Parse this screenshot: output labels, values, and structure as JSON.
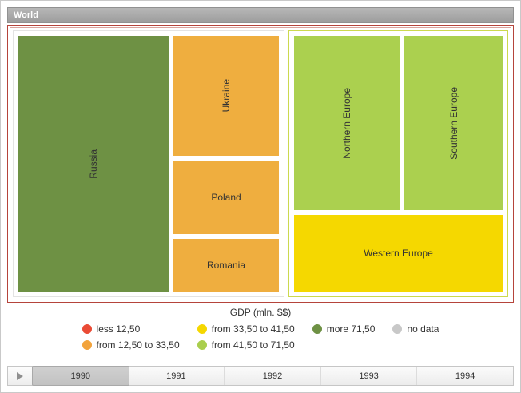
{
  "header": {
    "title": "World"
  },
  "treemap": {
    "cells": {
      "russia": {
        "label": "Russia",
        "color": "#6e9144"
      },
      "ukraine": {
        "label": "Ukraine",
        "color": "#efae3f"
      },
      "poland": {
        "label": "Poland",
        "color": "#efae3f"
      },
      "romania": {
        "label": "Romania",
        "color": "#efae3f"
      },
      "northern_europe": {
        "label": "Northern Europe",
        "color": "#abd04f"
      },
      "southern_europe": {
        "label": "Southern Europe",
        "color": "#abd04f"
      },
      "western_europe": {
        "label": "Western Europe",
        "color": "#f5d800"
      }
    }
  },
  "legend": {
    "title": "GDP (mln. $$)",
    "rows": [
      [
        {
          "label": "less 12,50",
          "color": "#ea4b35"
        },
        {
          "label": "from 33,50 to 41,50",
          "color": "#f5d700"
        },
        {
          "label": "more 71,50",
          "color": "#6e9144"
        },
        {
          "label": "no data",
          "color": "#c8c8c8"
        }
      ],
      [
        {
          "label": "from 12,50 to 33,50",
          "color": "#f2a33c"
        },
        {
          "label": "from 41,50 to 71,50",
          "color": "#a9ce4d"
        }
      ]
    ]
  },
  "timeline": {
    "years": [
      {
        "label": "1990",
        "selected": true
      },
      {
        "label": "1991",
        "selected": false
      },
      {
        "label": "1992",
        "selected": false
      },
      {
        "label": "1993",
        "selected": false
      },
      {
        "label": "1994",
        "selected": false
      }
    ]
  },
  "chart_data": {
    "type": "treemap",
    "title": "World",
    "legend_title": "GDP (mln. $$)",
    "year_shown": "1990",
    "years": [
      "1990",
      "1991",
      "1992",
      "1993",
      "1994"
    ],
    "color_scale": [
      {
        "range": "less 12,50",
        "color": "#ea4b35"
      },
      {
        "range": "from 12,50 to 33,50",
        "color": "#f2a33c"
      },
      {
        "range": "from 33,50 to 41,50",
        "color": "#f5d700"
      },
      {
        "range": "from 41,50 to 71,50",
        "color": "#a9ce4d"
      },
      {
        "range": "more 71,50",
        "color": "#6e9144"
      },
      {
        "range": "no data",
        "color": "#c8c8c8"
      }
    ],
    "nodes": [
      {
        "name": "Russia",
        "gdp_range": "more 71,50",
        "area_share_pct": 32
      },
      {
        "name": "Ukraine",
        "gdp_range": "from 12,50 to 33,50",
        "area_share_pct": 11
      },
      {
        "name": "Poland",
        "gdp_range": "from 12,50 to 33,50",
        "area_share_pct": 6
      },
      {
        "name": "Romania",
        "gdp_range": "from 12,50 to 33,50",
        "area_share_pct": 5
      },
      {
        "name": "Northern Europe",
        "gdp_range": "from 41,50 to 71,50",
        "area_share_pct": 17
      },
      {
        "name": "Southern Europe",
        "gdp_range": "from 41,50 to 71,50",
        "area_share_pct": 14
      },
      {
        "name": "Western Europe",
        "gdp_range": "from 33,50 to 41,50",
        "area_share_pct": 15
      }
    ]
  }
}
